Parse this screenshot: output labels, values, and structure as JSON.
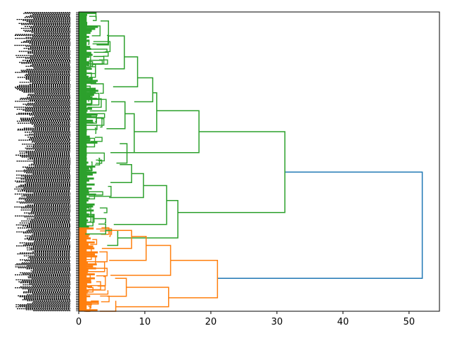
{
  "chart_data": {
    "type": "dendrogram",
    "orientation": "left",
    "title": "",
    "xlabel": "",
    "ylabel": "",
    "xlim": [
      0,
      54.6
    ],
    "x_ticks": [
      0,
      10,
      20,
      30,
      40,
      50
    ],
    "x_tick_labels": [
      "0",
      "10",
      "20",
      "30",
      "40",
      "50"
    ],
    "y_leaf_labels": "dense unreadable sample labels",
    "colors": {
      "green": "#2ca02c",
      "orange": "#ff7f0e",
      "blue": "#1f77b4",
      "axis": "#000000"
    },
    "clusters": [
      {
        "name": "green",
        "color": "#2ca02c",
        "leaf_share": 0.72,
        "merge_height": 31.2
      },
      {
        "name": "orange",
        "color": "#ff7f0e",
        "leaf_share": 0.28,
        "merge_height": 21.0
      }
    ],
    "root_merge_height": 52.0,
    "links": [
      {
        "color": "#1f77b4",
        "x": [
          31.2,
          52.0,
          52.0,
          21.0
        ],
        "y": [
          0.535,
          0.535,
          0.89,
          0.89
        ]
      },
      {
        "color": "#2ca02c",
        "x": [
          18.2,
          31.2,
          31.2,
          15.0
        ],
        "y": [
          0.4,
          0.4,
          0.67,
          0.67
        ]
      },
      {
        "color": "#2ca02c",
        "x": [
          11.8,
          18.2,
          18.2,
          7.3
        ],
        "y": [
          0.33,
          0.33,
          0.47,
          0.47
        ]
      },
      {
        "color": "#2ca02c",
        "x": [
          11.2,
          11.8,
          11.8,
          8.4
        ],
        "y": [
          0.27,
          0.27,
          0.4,
          0.4
        ]
      },
      {
        "color": "#2ca02c",
        "x": [
          8.9,
          11.2,
          11.2,
          8.4
        ],
        "y": [
          0.22,
          0.22,
          0.3,
          0.3
        ]
      },
      {
        "color": "#2ca02c",
        "x": [
          6.9,
          8.9,
          8.9,
          5.2
        ],
        "y": [
          0.15,
          0.15,
          0.25,
          0.25
        ]
      },
      {
        "color": "#2ca02c",
        "x": [
          4.5,
          6.9,
          6.9,
          3.9
        ],
        "y": [
          0.08,
          0.08,
          0.19,
          0.19
        ]
      },
      {
        "color": "#2ca02c",
        "x": [
          3.3,
          4.5,
          4.5,
          2.7
        ],
        "y": [
          0.03,
          0.03,
          0.11,
          0.11
        ]
      },
      {
        "color": "#2ca02c",
        "x": [
          7.0,
          8.4,
          8.4,
          4.8
        ],
        "y": [
          0.34,
          0.34,
          0.47,
          0.47
        ]
      },
      {
        "color": "#2ca02c",
        "x": [
          4.9,
          7.0,
          7.0,
          4.2
        ],
        "y": [
          0.3,
          0.3,
          0.39,
          0.39
        ]
      },
      {
        "color": "#2ca02c",
        "x": [
          6.2,
          7.3,
          7.3,
          5.7
        ],
        "y": [
          0.44,
          0.44,
          0.505,
          0.505
        ]
      },
      {
        "color": "#2ca02c",
        "x": [
          13.3,
          15.0,
          15.0,
          5.9
        ],
        "y": [
          0.63,
          0.63,
          0.755,
          0.755
        ]
      },
      {
        "color": "#2ca02c",
        "x": [
          9.8,
          13.3,
          13.3,
          5.3
        ],
        "y": [
          0.58,
          0.58,
          0.71,
          0.71
        ]
      },
      {
        "color": "#2ca02c",
        "x": [
          8.0,
          9.8,
          9.8,
          4.6
        ],
        "y": [
          0.54,
          0.54,
          0.62,
          0.62
        ]
      },
      {
        "color": "#2ca02c",
        "x": [
          6.2,
          8.0,
          8.0,
          4.8
        ],
        "y": [
          0.51,
          0.51,
          0.57,
          0.57
        ]
      },
      {
        "color": "#2ca02c",
        "x": [
          4.1,
          5.9,
          5.9,
          4.3
        ],
        "y": [
          0.73,
          0.73,
          0.78,
          0.78
        ]
      },
      {
        "color": "#ff7f0e",
        "x": [
          13.9,
          21.0,
          21.0,
          13.6
        ],
        "y": [
          0.83,
          0.83,
          0.955,
          0.955
        ]
      },
      {
        "color": "#ff7f0e",
        "x": [
          10.2,
          13.9,
          13.9,
          4.8
        ],
        "y": [
          0.78,
          0.78,
          0.88,
          0.88
        ]
      },
      {
        "color": "#ff7f0e",
        "x": [
          8.0,
          10.2,
          10.2,
          4.6
        ],
        "y": [
          0.75,
          0.75,
          0.83,
          0.83
        ]
      },
      {
        "color": "#ff7f0e",
        "x": [
          5.0,
          8.0,
          8.0,
          3.5
        ],
        "y": [
          0.73,
          0.73,
          0.79,
          0.79
        ]
      },
      {
        "color": "#ff7f0e",
        "x": [
          7.2,
          13.6,
          13.6,
          5.6
        ],
        "y": [
          0.92,
          0.92,
          0.985,
          0.985
        ]
      },
      {
        "color": "#ff7f0e",
        "x": [
          5.5,
          7.2,
          7.2,
          4.3
        ],
        "y": [
          0.89,
          0.89,
          0.95,
          0.95
        ]
      },
      {
        "color": "#ff7f0e",
        "x": [
          5.6,
          5.6,
          5.6,
          3.2
        ],
        "y": [
          0.965,
          0.965,
          1.0,
          1.0
        ]
      }
    ],
    "grid": false,
    "legend": "none"
  }
}
